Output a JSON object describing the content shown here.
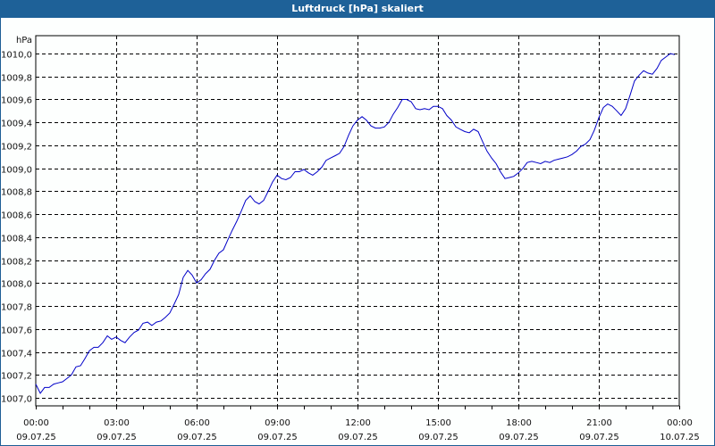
{
  "window": {
    "title": "Luftdruck [hPa] skaliert"
  },
  "colors": {
    "titlebar": "#1e6198",
    "line": "#0000c8",
    "grid": "#000000",
    "background": "#fdfffe"
  },
  "chart_data": {
    "type": "line",
    "title": "Luftdruck [hPa] skaliert",
    "xlabel": "",
    "ylabel": "hPa",
    "ylim": [
      1006.9,
      1010.15
    ],
    "xlim": [
      "09.07.25 00:00",
      "10.07.25 00:00"
    ],
    "grid": true,
    "legend": null,
    "y_ticks": [
      "1010,0",
      "1009,8",
      "1009,6",
      "1009,4",
      "1009,2",
      "1009,0",
      "1008,8",
      "1008,6",
      "1008,4",
      "1008,2",
      "1008,0",
      "1007,8",
      "1007,6",
      "1007,4",
      "1007,2",
      "1007,0"
    ],
    "x_ticks": [
      {
        "time": "00:00",
        "date": "09.07.25"
      },
      {
        "time": "03:00",
        "date": "09.07.25"
      },
      {
        "time": "06:00",
        "date": "09.07.25"
      },
      {
        "time": "09:00",
        "date": "09.07.25"
      },
      {
        "time": "12:00",
        "date": "09.07.25"
      },
      {
        "time": "15:00",
        "date": "09.07.25"
      },
      {
        "time": "18:00",
        "date": "09.07.25"
      },
      {
        "time": "21:00",
        "date": "09.07.25"
      },
      {
        "time": "00:00",
        "date": "10.07.25"
      }
    ],
    "series": [
      {
        "name": "Luftdruck",
        "x_hours": [
          0,
          0.17,
          0.33,
          0.5,
          0.67,
          0.83,
          1,
          1.17,
          1.33,
          1.5,
          1.67,
          1.83,
          2,
          2.17,
          2.33,
          2.5,
          2.67,
          2.83,
          3,
          3.17,
          3.33,
          3.5,
          3.67,
          3.83,
          4,
          4.17,
          4.33,
          4.5,
          4.67,
          4.83,
          5,
          5.17,
          5.33,
          5.5,
          5.67,
          5.83,
          6,
          6.17,
          6.33,
          6.5,
          6.67,
          6.83,
          7,
          7.17,
          7.33,
          7.5,
          7.67,
          7.83,
          8,
          8.17,
          8.33,
          8.5,
          8.67,
          8.83,
          9,
          9.17,
          9.33,
          9.5,
          9.67,
          9.83,
          10,
          10.17,
          10.33,
          10.5,
          10.67,
          10.83,
          11,
          11.17,
          11.33,
          11.5,
          11.67,
          11.83,
          12,
          12.17,
          12.33,
          12.5,
          12.67,
          12.83,
          13,
          13.17,
          13.33,
          13.5,
          13.67,
          13.83,
          14,
          14.17,
          14.33,
          14.5,
          14.67,
          14.83,
          15,
          15.17,
          15.33,
          15.5,
          15.67,
          15.83,
          16,
          16.17,
          16.33,
          16.5,
          16.67,
          16.83,
          17,
          17.17,
          17.33,
          17.5,
          17.67,
          17.83,
          18,
          18.17,
          18.33,
          18.5,
          18.67,
          18.83,
          19,
          19.17,
          19.33,
          19.5,
          19.67,
          19.83,
          20,
          20.17,
          20.33,
          20.5,
          20.67,
          20.83,
          21,
          21.17,
          21.33,
          21.5,
          21.67,
          21.83,
          22,
          22.17,
          22.33,
          22.5,
          22.67,
          22.83,
          23,
          23.17,
          23.33,
          23.5,
          23.67,
          23.83
        ],
        "values": [
          1007.12,
          1007.04,
          1007.09,
          1007.09,
          1007.12,
          1007.13,
          1007.14,
          1007.17,
          1007.2,
          1007.27,
          1007.28,
          1007.34,
          1007.41,
          1007.44,
          1007.44,
          1007.48,
          1007.54,
          1007.51,
          1007.53,
          1007.5,
          1007.48,
          1007.53,
          1007.57,
          1007.59,
          1007.65,
          1007.66,
          1007.63,
          1007.66,
          1007.67,
          1007.7,
          1007.74,
          1007.82,
          1007.9,
          1008.05,
          1008.11,
          1008.07,
          1008.0,
          1008.03,
          1008.08,
          1008.12,
          1008.2,
          1008.26,
          1008.29,
          1008.38,
          1008.46,
          1008.54,
          1008.63,
          1008.72,
          1008.76,
          1008.71,
          1008.69,
          1008.72,
          1008.8,
          1008.88,
          1008.94,
          1008.91,
          1008.9,
          1008.92,
          1008.97,
          1008.97,
          1008.99,
          1008.96,
          1008.94,
          1008.97,
          1009.01,
          1009.07,
          1009.09,
          1009.11,
          1009.13,
          1009.19,
          1009.29,
          1009.37,
          1009.42,
          1009.45,
          1009.42,
          1009.37,
          1009.35,
          1009.35,
          1009.36,
          1009.4,
          1009.47,
          1009.53,
          1009.6,
          1009.6,
          1009.58,
          1009.52,
          1009.51,
          1009.52,
          1009.51,
          1009.54,
          1009.54,
          1009.52,
          1009.46,
          1009.42,
          1009.36,
          1009.34,
          1009.32,
          1009.31,
          1009.34,
          1009.32,
          1009.23,
          1009.15,
          1009.09,
          1009.04,
          1008.97,
          1008.91,
          1008.92,
          1008.93,
          1008.96,
          1009.0,
          1009.05,
          1009.06,
          1009.05,
          1009.04,
          1009.06,
          1009.05,
          1009.07,
          1009.08,
          1009.09,
          1009.1,
          1009.12,
          1009.15,
          1009.19,
          1009.21,
          1009.25,
          1009.33,
          1009.44,
          1009.53,
          1009.56,
          1009.54,
          1009.5,
          1009.46,
          1009.52,
          1009.64,
          1009.76,
          1009.81,
          1009.85,
          1009.83,
          1009.82,
          1009.87,
          1009.94,
          1009.97,
          1010.0,
          1009.99
        ]
      }
    ]
  }
}
